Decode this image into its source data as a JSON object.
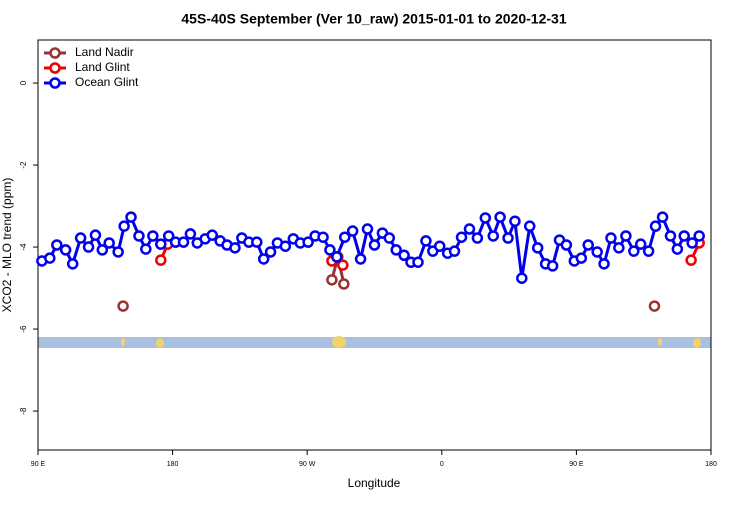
{
  "chart_data": {
    "type": "line",
    "title": "45S-40S September (Ver 10_raw)   2015-01-01 to 2020-12-31",
    "x_label": "Longitude",
    "y_label": "XCO2 - MLO trend (ppm)",
    "xlim": [
      90,
      540
    ],
    "xticks": [
      {
        "value": 90,
        "label": "90 E"
      },
      180,
      {
        "value": 270,
        "label": "90 W"
      },
      {
        "value": 360,
        "label": "0"
      },
      {
        "value": 450,
        "label": "90 E"
      },
      {
        "value": 540,
        "label": "180"
      }
    ],
    "ylim": [
      -8.95,
      1.05
    ],
    "yticks": [
      0,
      -2,
      -4,
      -6,
      -8
    ],
    "legend": "top-left",
    "series": [
      {
        "name": "Land Nadir",
        "color": "#993333",
        "x": [
          146.9,
          null,
          286.5,
          290.5,
          294.5,
          null,
          502.2
        ],
        "values": [
          -5.44,
          null,
          -4.8,
          -4.24,
          -4.9,
          null,
          -5.44
        ]
      },
      {
        "name": "Land Glint",
        "color": "#ee0000",
        "x": [
          172.1,
          176.7,
          null,
          286.5,
          293.8,
          null,
          526.7,
          532.1
        ],
        "values": [
          -4.32,
          -3.93,
          null,
          -4.34,
          -4.44,
          null,
          -4.32,
          -3.9
        ]
      },
      {
        "name": "Ocean Glint",
        "color": "#0000ee",
        "x": [
          92.6,
          97.9,
          102.6,
          108.5,
          113.2,
          118.5,
          123.8,
          128.4,
          133.0,
          137.6,
          143.6,
          147.6,
          152.2,
          157.5,
          162.1,
          166.8,
          172.1,
          177.4,
          182.0,
          187.3,
          191.9,
          196.5,
          201.8,
          206.5,
          211.8,
          216.4,
          221.7,
          226.3,
          231.0,
          236.3,
          240.9,
          245.5,
          250.1,
          255.4,
          260.7,
          265.4,
          270.6,
          275.3,
          280.6,
          285.2,
          289.8,
          295.1,
          300.4,
          305.7,
          310.3,
          315.0,
          320.3,
          324.9,
          329.5,
          334.8,
          339.4,
          344.1,
          349.4,
          354.0,
          358.6,
          363.9,
          368.5,
          373.2,
          378.5,
          383.8,
          389.1,
          394.4,
          399.0,
          404.3,
          408.9,
          413.5,
          418.8,
          424.1,
          429.4,
          434.1,
          438.7,
          443.3,
          448.6,
          453.3,
          457.9,
          463.9,
          468.5,
          473.1,
          478.4,
          483.1,
          488.4,
          493.0,
          498.3,
          502.9,
          507.6,
          512.9,
          517.5,
          522.1,
          527.4,
          532.1
        ],
        "values": [
          -4.34,
          -4.27,
          -3.95,
          -4.07,
          -4.41,
          -3.78,
          -4.0,
          -3.71,
          -4.07,
          -3.9,
          -4.12,
          -3.49,
          -3.27,
          -3.73,
          -4.05,
          -3.73,
          -3.93,
          -3.73,
          -3.88,
          -3.88,
          -3.68,
          -3.9,
          -3.8,
          -3.71,
          -3.85,
          -3.95,
          -4.02,
          -3.78,
          -3.88,
          -3.88,
          -4.29,
          -4.12,
          -3.9,
          -3.98,
          -3.8,
          -3.9,
          -3.88,
          -3.73,
          -3.76,
          -4.07,
          -4.24,
          -3.76,
          -3.61,
          -4.29,
          -3.56,
          -3.95,
          -3.66,
          -3.78,
          -4.07,
          -4.2,
          -4.37,
          -4.37,
          -3.85,
          -4.1,
          -3.98,
          -4.15,
          -4.1,
          -3.76,
          -3.56,
          -3.78,
          -3.29,
          -3.73,
          -3.27,
          -3.78,
          -3.37,
          -4.76,
          -3.49,
          -4.02,
          -4.41,
          -4.46,
          -3.83,
          -3.95,
          -4.34,
          -4.27,
          -3.95,
          -4.12,
          -4.41,
          -3.78,
          -4.02,
          -3.73,
          -4.1,
          -3.93,
          -4.1,
          -3.49,
          -3.27,
          -3.73,
          -4.05,
          -3.73,
          -3.9,
          -3.73
        ]
      }
    ]
  }
}
